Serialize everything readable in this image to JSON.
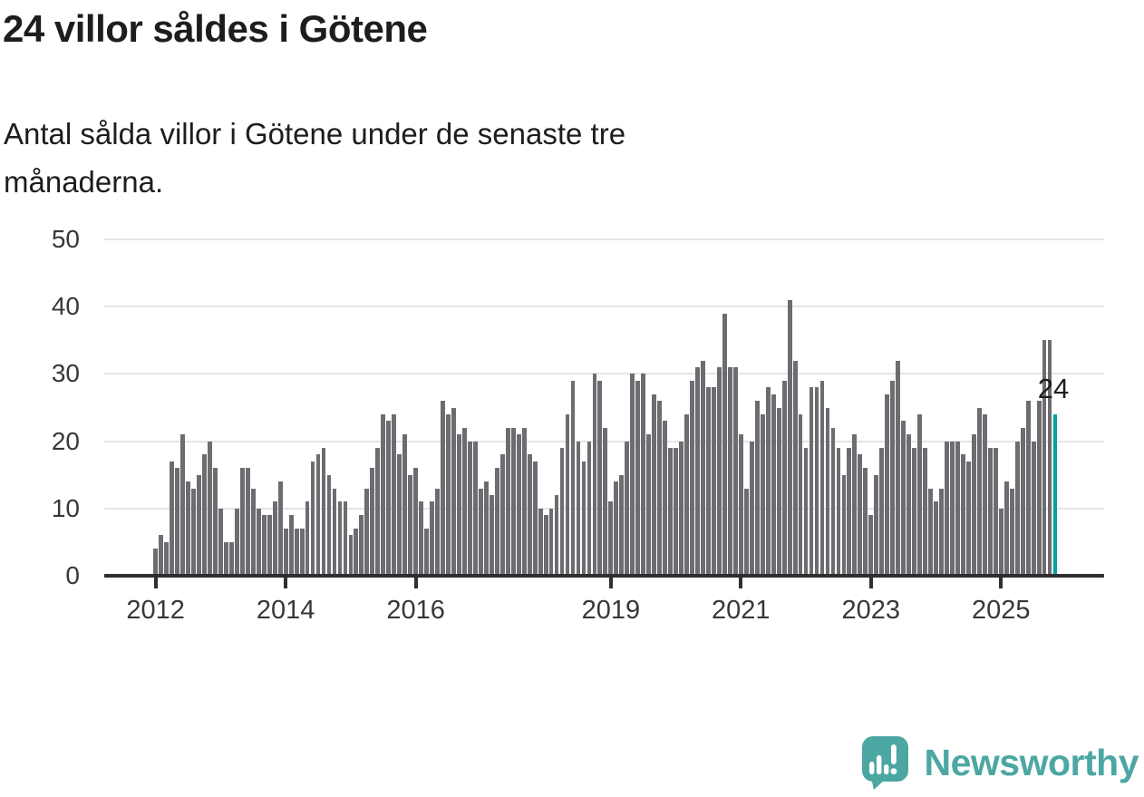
{
  "header": {
    "title": "24 villor såldes i Götene",
    "subtitle": "Antal sålda villor i Götene under de senaste tre månaderna.",
    "subtitle_lines": [
      "Antal sålda villor i Götene under de senaste tre",
      "månaderna."
    ]
  },
  "annotation": {
    "value_label": "24"
  },
  "logo": {
    "text": "Newsworthy",
    "icon": "newsworthy-speech-bubble-chart-icon"
  },
  "colors": {
    "bar": "#6c6c71",
    "highlight": "#00a09e",
    "axis": "#2f2f2f",
    "grid": "#e5e5e5",
    "text": "#1d1d1b",
    "axis_text": "#383838",
    "logo": "#4ca7a3"
  },
  "chart_data": {
    "type": "bar",
    "title": "24 villor såldes i Götene",
    "subtitle": "Antal sålda villor i Götene under de senaste tre månaderna.",
    "x_unit": "month",
    "x_start": "2012-01",
    "x_end": "2025-11",
    "ylabel": "",
    "xlabel": "",
    "ylim": [
      0,
      50
    ],
    "yticks": [
      0,
      10,
      20,
      30,
      40,
      50
    ],
    "grid": "horizontal",
    "legend": "none",
    "xticks": [
      {
        "label": "2012",
        "month_index": 0
      },
      {
        "label": "2014",
        "month_index": 24
      },
      {
        "label": "2016",
        "month_index": 48
      },
      {
        "label": "2019",
        "month_index": 84
      },
      {
        "label": "2021",
        "month_index": 108
      },
      {
        "label": "2023",
        "month_index": 132
      },
      {
        "label": "2025",
        "month_index": 156
      }
    ],
    "values": [
      4,
      6,
      5,
      17,
      16,
      21,
      14,
      13,
      15,
      18,
      20,
      16,
      10,
      5,
      5,
      10,
      16,
      16,
      13,
      10,
      9,
      9,
      11,
      14,
      7,
      9,
      7,
      7,
      11,
      17,
      18,
      19,
      15,
      13,
      11,
      11,
      6,
      7,
      9,
      13,
      16,
      19,
      24,
      23,
      24,
      18,
      21,
      15,
      16,
      11,
      7,
      11,
      13,
      26,
      24,
      25,
      21,
      22,
      20,
      20,
      13,
      14,
      12,
      16,
      18,
      22,
      22,
      21,
      22,
      18,
      17,
      10,
      9,
      10,
      12,
      19,
      24,
      29,
      20,
      17,
      20,
      30,
      29,
      22,
      11,
      14,
      15,
      20,
      30,
      29,
      30,
      21,
      27,
      26,
      23,
      19,
      19,
      20,
      24,
      29,
      31,
      32,
      28,
      28,
      31,
      39,
      31,
      31,
      21,
      13,
      20,
      26,
      24,
      28,
      27,
      25,
      29,
      41,
      32,
      24,
      19,
      28,
      28,
      29,
      25,
      22,
      19,
      15,
      19,
      21,
      18,
      16,
      9,
      15,
      19,
      27,
      29,
      32,
      23,
      21,
      19,
      24,
      19,
      13,
      11,
      13,
      20,
      20,
      20,
      18,
      17,
      21,
      25,
      24,
      19,
      19,
      10,
      14,
      13,
      20,
      22,
      26,
      20,
      26,
      35,
      35,
      24
    ],
    "highlight": {
      "index": 166,
      "value": 24,
      "label": "24"
    }
  }
}
